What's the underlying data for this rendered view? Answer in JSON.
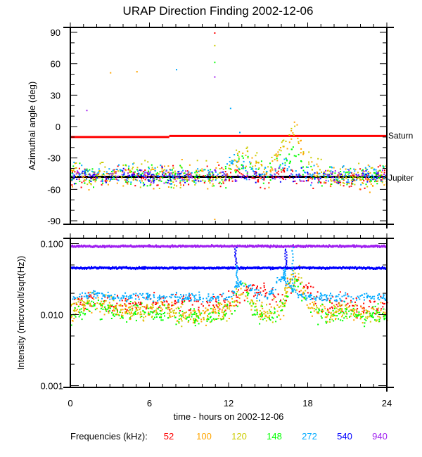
{
  "chart_data": [
    {
      "type": "scatter",
      "title": "URAP Direction Finding  2002-12-06",
      "xlabel": "",
      "ylabel": "Azimuthal angle (deg)",
      "xlim": [
        0,
        24
      ],
      "ylim": [
        -90,
        90
      ],
      "yticks": [
        "90",
        "60",
        "30",
        "0",
        "-30",
        "-60",
        "-90"
      ],
      "reference_lines": [
        {
          "name": "Saturn",
          "color": "#ff0000",
          "segments": [
            {
              "t0": 0,
              "t1": 7.5,
              "value": -10
            },
            {
              "t0": 7.5,
              "t1": 24,
              "value": -9
            }
          ]
        },
        {
          "name": "Jupiter",
          "color": "#000000",
          "segments": [
            {
              "t0": 0,
              "t1": 24,
              "value": -48
            }
          ]
        }
      ],
      "hours": [
        0,
        1,
        2,
        3,
        4,
        5,
        6,
        7,
        8,
        9,
        10,
        11,
        12,
        13,
        14,
        15,
        16,
        17,
        18,
        19,
        20,
        21,
        22,
        23,
        24
      ],
      "series": [
        {
          "name": "52",
          "color": "#ff0000",
          "spread": 5,
          "values": [
            -47,
            -47,
            -48,
            -47,
            -48,
            -47,
            -47,
            -48,
            -48,
            -47,
            -48,
            -48,
            -47,
            -46,
            -47,
            -48,
            -47,
            -45,
            -47,
            -48,
            -48,
            -49,
            -48,
            -48,
            -48
          ]
        },
        {
          "name": "100",
          "color": "#ffa500",
          "spread": 6,
          "values": [
            -44,
            -46,
            -47,
            -46,
            -47,
            -46,
            -47,
            -47,
            -47,
            -46,
            -47,
            -47,
            -45,
            -25,
            -38,
            -45,
            -20,
            -5,
            -35,
            -46,
            -46,
            -47,
            -47,
            -47,
            -47
          ]
        },
        {
          "name": "120",
          "color": "#cccc00",
          "spread": 6,
          "values": [
            -42,
            -45,
            -46,
            -46,
            -46,
            -47,
            -46,
            -46,
            -47,
            -46,
            -47,
            -46,
            -44,
            -18,
            -36,
            -44,
            -18,
            -3,
            -32,
            -45,
            -46,
            -46,
            -46,
            -47,
            -46
          ]
        },
        {
          "name": "148",
          "color": "#00ff00",
          "spread": 5,
          "values": [
            -46,
            -47,
            -47,
            -46,
            -46,
            -46,
            -47,
            -47,
            -48,
            -47,
            -47,
            -47,
            -46,
            -35,
            -40,
            -46,
            -30,
            -25,
            -40,
            -46,
            -47,
            -47,
            -47,
            -47,
            -46
          ]
        },
        {
          "name": "272",
          "color": "#00aaff",
          "spread": 5,
          "values": [
            -45,
            -44,
            -45,
            -45,
            -44,
            -45,
            -45,
            -45,
            -46,
            -45,
            -44,
            -45,
            -30,
            -38,
            -44,
            -45,
            -35,
            -44,
            -45,
            -45,
            -45,
            -44,
            -45,
            -45,
            -45
          ]
        },
        {
          "name": "540",
          "color": "#0000ff",
          "spread": 3,
          "values": [
            -47,
            -47,
            -47,
            -47,
            -47,
            -47,
            -47,
            -47,
            -47,
            -47,
            -47,
            -47,
            -47,
            -47,
            -47,
            -47,
            -47,
            -47,
            -47,
            -47,
            -47,
            -47,
            -47,
            -47,
            -47
          ]
        },
        {
          "name": "940",
          "color": "#a020f0",
          "spread": 3,
          "values": [
            -46,
            -46,
            -46,
            -46,
            -46,
            -46,
            -46,
            -46,
            -46,
            -46,
            -46,
            -46,
            -46,
            -46,
            -46,
            -46,
            -46,
            -46,
            -46,
            -46,
            -46,
            -46,
            -46,
            -46,
            -46
          ]
        }
      ],
      "outliers": [
        {
          "t": 1.2,
          "deg": 16,
          "series": "940"
        },
        {
          "t": 3.0,
          "deg": 52,
          "series": "100"
        },
        {
          "t": 5.0,
          "deg": 53,
          "series": "100"
        },
        {
          "t": 8.0,
          "deg": 55,
          "series": "272"
        },
        {
          "t": 10.9,
          "deg": 90,
          "series": "52"
        },
        {
          "t": 10.9,
          "deg": 78,
          "series": "120"
        },
        {
          "t": 10.9,
          "deg": 62,
          "series": "148"
        },
        {
          "t": 10.9,
          "deg": 48,
          "series": "940"
        },
        {
          "t": 12.1,
          "deg": 18,
          "series": "272"
        },
        {
          "t": 12.8,
          "deg": -5,
          "series": "272"
        },
        {
          "t": 10.9,
          "deg": -88,
          "series": "100"
        }
      ],
      "labels": [
        "Saturn",
        "Jupiter"
      ]
    },
    {
      "type": "scatter",
      "xlabel": "time - hours on 2002-12-06",
      "ylabel": "Intensity (microvolt/sqrt(Hz))",
      "xlim": [
        0,
        24
      ],
      "ylim": [
        0.001,
        0.1
      ],
      "yscale": "log",
      "xticks": [
        "0",
        "6",
        "12",
        "18",
        "24"
      ],
      "yticks": [
        "0.100",
        "0.010",
        "0.001"
      ],
      "hours": [
        0,
        1,
        2,
        3,
        4,
        5,
        6,
        7,
        8,
        9,
        10,
        11,
        12,
        13,
        14,
        15,
        16,
        17,
        18,
        19,
        20,
        21,
        22,
        23,
        24
      ],
      "series": [
        {
          "name": "52",
          "color": "#ff0000",
          "values": [
            0.014,
            0.015,
            0.016,
            0.015,
            0.013,
            0.014,
            0.015,
            0.014,
            0.016,
            0.015,
            0.014,
            0.015,
            0.014,
            0.022,
            0.024,
            0.021,
            0.016,
            0.028,
            0.022,
            0.015,
            0.014,
            0.015,
            0.013,
            0.014,
            0.014
          ]
        },
        {
          "name": "100",
          "color": "#ffa500",
          "values": [
            0.011,
            0.013,
            0.014,
            0.012,
            0.011,
            0.012,
            0.011,
            0.012,
            0.011,
            0.01,
            0.01,
            0.011,
            0.011,
            0.022,
            0.012,
            0.01,
            0.012,
            0.035,
            0.014,
            0.011,
            0.011,
            0.012,
            0.01,
            0.011,
            0.01
          ]
        },
        {
          "name": "120",
          "color": "#cccc00",
          "values": [
            0.012,
            0.015,
            0.018,
            0.013,
            0.011,
            0.012,
            0.012,
            0.013,
            0.011,
            0.01,
            0.01,
            0.011,
            0.012,
            0.025,
            0.013,
            0.01,
            0.013,
            0.04,
            0.015,
            0.011,
            0.011,
            0.012,
            0.01,
            0.011,
            0.01
          ]
        },
        {
          "name": "148",
          "color": "#00ff00",
          "values": [
            0.01,
            0.012,
            0.013,
            0.011,
            0.01,
            0.011,
            0.011,
            0.01,
            0.01,
            0.0095,
            0.0095,
            0.01,
            0.011,
            0.022,
            0.011,
            0.0095,
            0.012,
            0.03,
            0.012,
            0.01,
            0.01,
            0.011,
            0.0095,
            0.011,
            0.01
          ]
        },
        {
          "name": "272",
          "color": "#00aaff",
          "values": [
            0.017,
            0.019,
            0.02,
            0.018,
            0.018,
            0.019,
            0.018,
            0.018,
            0.018,
            0.018,
            0.018,
            0.018,
            0.018,
            0.03,
            0.02,
            0.018,
            0.035,
            0.02,
            0.018,
            0.018,
            0.018,
            0.018,
            0.018,
            0.018,
            0.018
          ]
        },
        {
          "name": "540",
          "color": "#0000ff",
          "values": [
            0.047,
            0.047,
            0.047,
            0.047,
            0.047,
            0.047,
            0.047,
            0.047,
            0.047,
            0.047,
            0.047,
            0.047,
            0.047,
            0.047,
            0.047,
            0.047,
            0.047,
            0.047,
            0.047,
            0.047,
            0.047,
            0.047,
            0.047,
            0.047,
            0.047
          ]
        },
        {
          "name": "940",
          "color": "#a020f0",
          "values": [
            0.095,
            0.095,
            0.095,
            0.095,
            0.095,
            0.095,
            0.095,
            0.095,
            0.095,
            0.095,
            0.095,
            0.095,
            0.095,
            0.095,
            0.095,
            0.095,
            0.095,
            0.095,
            0.095,
            0.095,
            0.095,
            0.095,
            0.095,
            0.095,
            0.095
          ]
        }
      ],
      "bursts": [
        {
          "series": "540",
          "t": 12.5,
          "value": 0.09
        },
        {
          "series": "540",
          "t": 16.3,
          "value": 0.085
        },
        {
          "series": "272",
          "t": 12.6,
          "value": 0.05
        },
        {
          "series": "272",
          "t": 16.8,
          "value": 0.09
        },
        {
          "series": "272",
          "t": 16.2,
          "value": 0.045
        }
      ]
    }
  ],
  "legend": {
    "label": "Frequencies (kHz):",
    "items": [
      {
        "name": "52",
        "color": "#ff0000"
      },
      {
        "name": "100",
        "color": "#ffa500"
      },
      {
        "name": "120",
        "color": "#cccc00"
      },
      {
        "name": "148",
        "color": "#00ff00"
      },
      {
        "name": "272",
        "color": "#00aaff"
      },
      {
        "name": "540",
        "color": "#0000ff"
      },
      {
        "name": "940",
        "color": "#a020f0"
      }
    ]
  }
}
